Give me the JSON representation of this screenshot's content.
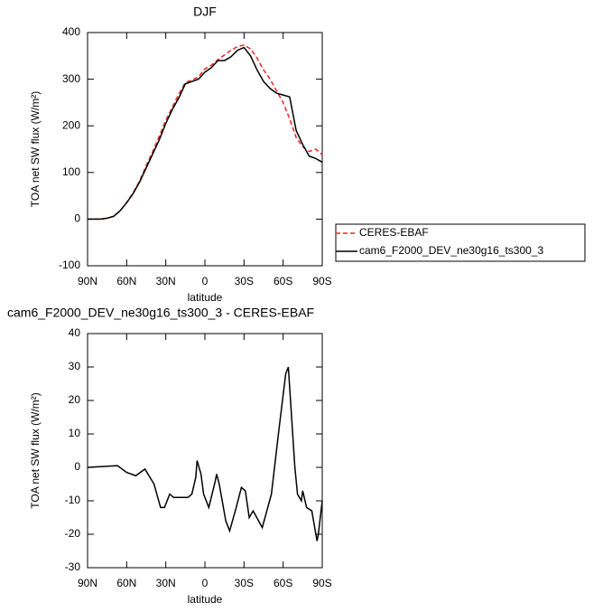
{
  "chart_data": [
    {
      "type": "line",
      "title": "DJF",
      "x_label": "latitude",
      "y_label": "TOA net SW flux (W/m²)",
      "x": [
        90,
        85,
        80,
        75,
        70,
        65,
        60,
        55,
        50,
        45,
        40,
        35,
        30,
        25,
        20,
        15,
        10,
        5,
        0,
        -5,
        -10,
        -15,
        -20,
        -25,
        -30,
        -35,
        -40,
        -45,
        -50,
        -55,
        -60,
        -65,
        -70,
        -75,
        -80,
        -85,
        -90
      ],
      "series": [
        {
          "name": "CERES-EBAF",
          "color": "#e8261e",
          "dash": true,
          "values": [
            0,
            0,
            0,
            2,
            6,
            18,
            36,
            57,
            82,
            115,
            145,
            178,
            212,
            240,
            268,
            293,
            298,
            305,
            322,
            330,
            342,
            352,
            362,
            370,
            373,
            365,
            345,
            320,
            300,
            275,
            250,
            215,
            175,
            155,
            145,
            150,
            138
          ]
        },
        {
          "name": "cam6_F2000_DEV_ne30g16_ts300_3",
          "color": "#000000",
          "dash": false,
          "values": [
            0,
            0,
            0,
            2,
            6,
            18,
            35,
            55,
            80,
            110,
            140,
            170,
            205,
            235,
            260,
            290,
            295,
            300,
            315,
            325,
            340,
            340,
            348,
            362,
            368,
            350,
            320,
            295,
            280,
            270,
            266,
            262,
            190,
            160,
            135,
            130,
            122
          ]
        }
      ],
      "xlim": [
        90,
        -90
      ],
      "xticks": [
        {
          "value": 90,
          "label": "90N"
        },
        {
          "value": 60,
          "label": "60N"
        },
        {
          "value": 30,
          "label": "30N"
        },
        0,
        {
          "value": -30,
          "label": "30S"
        },
        {
          "value": -60,
          "label": "60S"
        },
        {
          "value": -90,
          "label": "90S"
        }
      ],
      "ylim": [
        -100,
        400
      ],
      "yticks": [
        -100,
        0,
        100,
        200,
        300,
        400
      ],
      "grid": false,
      "legend": "right"
    },
    {
      "type": "line",
      "title": "cam6_F2000_DEV_ne30g16_ts300_3 - CERES-EBAF",
      "x_label": "latitude",
      "y_label": "TOA net SW flux (W/m²)",
      "x": [
        90,
        67,
        60,
        53,
        46,
        39,
        34,
        31,
        27,
        24,
        19,
        13,
        10,
        7,
        6,
        3,
        1,
        -3,
        -8,
        -9,
        -11,
        -16,
        -19,
        -24,
        -28,
        -31,
        -34,
        -37,
        -44,
        -51,
        -57,
        -62,
        -64,
        -69,
        -71,
        -74,
        -75,
        -78,
        -82,
        -86,
        -87,
        -90
      ],
      "values": [
        0,
        0.5,
        -1.5,
        -2.5,
        -0.5,
        -5,
        -12,
        -12,
        -8,
        -9,
        -9,
        -9,
        -8,
        -3,
        2,
        -2,
        -8,
        -12,
        -4,
        -2,
        -5,
        -16,
        -19,
        -12,
        -6,
        -7,
        -15,
        -13,
        -18,
        -8,
        12,
        28,
        30,
        0,
        -8,
        -10,
        -7,
        -12,
        -13,
        -22,
        -20,
        -10
      ],
      "color": "#000000",
      "xlim": [
        90,
        -90
      ],
      "xticks": [
        {
          "value": 90,
          "label": "90N"
        },
        {
          "value": 60,
          "label": "60N"
        },
        {
          "value": 30,
          "label": "30N"
        },
        0,
        {
          "value": -30,
          "label": "30S"
        },
        {
          "value": -60,
          "label": "60S"
        },
        {
          "value": -90,
          "label": "90S"
        }
      ],
      "ylim": [
        -30,
        40
      ],
      "yticks": [
        -30,
        -20,
        -10,
        0,
        10,
        20,
        30,
        40
      ],
      "grid": false
    }
  ]
}
